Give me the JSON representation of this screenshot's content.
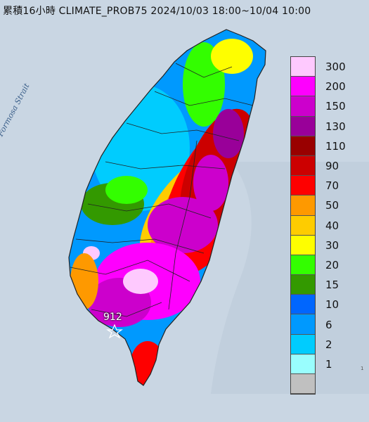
{
  "title": "累積16小時 CLIMATE_PROB75 2024/10/03 18:00~10/04 10:00",
  "sea_label": "Formosa Strait",
  "max_marker": "912",
  "edge_text": "1",
  "legend": {
    "entries": [
      {
        "label": "300",
        "color": "#fec9fe"
      },
      {
        "label": "200",
        "color": "#fe00fe"
      },
      {
        "label": "150",
        "color": "#cc00cc"
      },
      {
        "label": "130",
        "color": "#990099"
      },
      {
        "label": "110",
        "color": "#990000"
      },
      {
        "label": "90",
        "color": "#cc0000"
      },
      {
        "label": "70",
        "color": "#fe0000"
      },
      {
        "label": "50",
        "color": "#fe9900"
      },
      {
        "label": "40",
        "color": "#fecc00"
      },
      {
        "label": "30",
        "color": "#fefe00"
      },
      {
        "label": "20",
        "color": "#33fe00"
      },
      {
        "label": "15",
        "color": "#339900"
      },
      {
        "label": "10",
        "color": "#0066fe"
      },
      {
        "label": "6",
        "color": "#0099fe"
      },
      {
        "label": "2",
        "color": "#00ccfe"
      },
      {
        "label": "1",
        "color": "#99fefe"
      },
      {
        "label": "",
        "color": "#c0c0c0"
      }
    ]
  },
  "colors": {
    "sea": "#c9d6e3",
    "boundary": "#222222"
  }
}
